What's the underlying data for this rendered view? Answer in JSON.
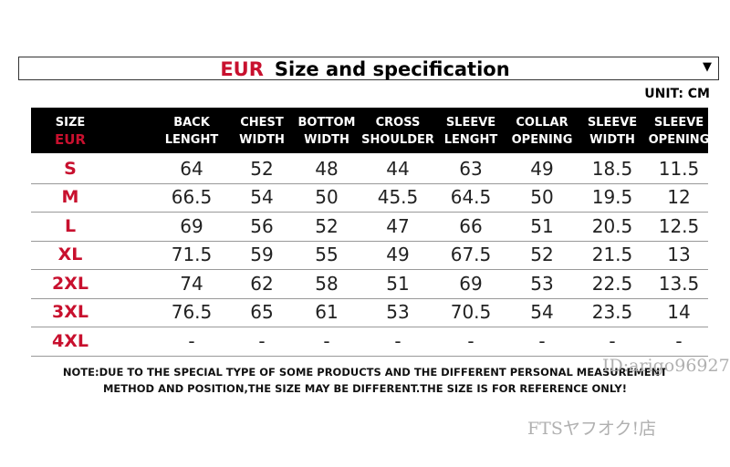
{
  "header": {
    "title_prefix": "EUR",
    "title": "Size and specification",
    "dropdown": "▼",
    "unit": "UNIT: CM"
  },
  "table": {
    "columns": [
      [
        "SIZE",
        "EUR"
      ],
      [
        "BACK",
        "LENGHT"
      ],
      [
        "CHEST",
        "WIDTH"
      ],
      [
        "BOTTOM",
        "WIDTH"
      ],
      [
        "CROSS",
        "SHOULDER"
      ],
      [
        "SLEEVE",
        "LENGHT"
      ],
      [
        "COLLAR",
        "OPENING"
      ],
      [
        "SLEEVE",
        "WIDTH"
      ],
      [
        "SLEEVE",
        "OPENING"
      ]
    ],
    "rows": [
      [
        "S",
        64,
        52,
        48,
        44,
        63,
        49,
        18.5,
        11.5
      ],
      [
        "M",
        66.5,
        54,
        50,
        45.5,
        64.5,
        50,
        19.5,
        12
      ],
      [
        "L",
        69,
        56,
        52,
        47,
        66,
        51,
        20.5,
        12.5
      ],
      [
        "XL",
        71.5,
        59,
        55,
        49,
        67.5,
        52,
        21.5,
        13
      ],
      [
        "2XL",
        74,
        62,
        58,
        51,
        69,
        53,
        22.5,
        13.5
      ],
      [
        "3XL",
        76.5,
        65,
        61,
        53,
        70.5,
        54,
        23.5,
        14
      ],
      [
        "4XL",
        "-",
        "-",
        "-",
        "-",
        "-",
        "-",
        "-",
        "-"
      ]
    ]
  },
  "note": [
    "NOTE:DUE TO THE SPECIAL TYPE OF SOME PRODUCTS AND THE DIFFERENT PERSONAL MEASUREMENT",
    "METHOD AND POSITION,THE SIZE MAY BE DIFFERENT.THE SIZE IS FOR REFERENCE ONLY!"
  ],
  "watermarks": [
    "ID:arigo96927",
    "FTSヤフオク!店"
  ]
}
